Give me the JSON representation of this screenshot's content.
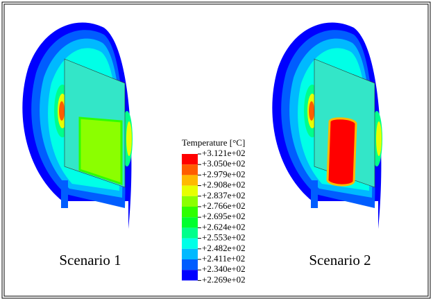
{
  "legend": {
    "title": "Temperature [°C]",
    "labels": [
      "+3.121e+02",
      "+3.050e+02",
      "+2.979e+02",
      "+2.908e+02",
      "+2.837e+02",
      "+2.766e+02",
      "+2.695e+02",
      "+2.624e+02",
      "+2.553e+02",
      "+2.482e+02",
      "+2.411e+02",
      "+2.340e+02",
      "+2.269e+02"
    ],
    "colors": [
      "#ff0000",
      "#ff5d00",
      "#ffb900",
      "#e7ff00",
      "#8bff00",
      "#2eff00",
      "#00ff2e",
      "#00ff8b",
      "#00ffe7",
      "#00b9ff",
      "#005dff",
      "#0000ff"
    ]
  },
  "panels": [
    {
      "label": "Scenario 1"
    },
    {
      "label": "Scenario 2"
    }
  ]
}
